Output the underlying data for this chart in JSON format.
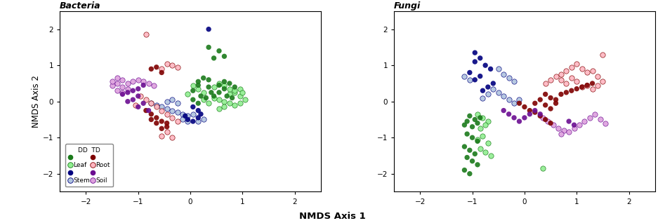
{
  "title_bacteria": "Bacteria",
  "title_fungi": "Fungi",
  "xlabel": "NMDS Axis 1",
  "ylabel": "NMDS Axis 2",
  "xlim": [
    -2.5,
    2.5
  ],
  "ylim": [
    -2.5,
    2.5
  ],
  "xticks": [
    -2,
    -1,
    0,
    1,
    2
  ],
  "yticks": [
    -2,
    -1,
    0,
    1,
    2
  ],
  "legend_labels": [
    "Leaf",
    "Stem",
    "Root",
    "Soil"
  ],
  "dd_colors": [
    "#1A7A1A",
    "#00007F",
    "#7F0000",
    "#6B0D91"
  ],
  "td_colors": [
    "#90EE90",
    "#B0C4DE",
    "#FFB6C1",
    "#DDA0DD"
  ],
  "marker_size": 28,
  "marker_alpha": 0.9,
  "background_color": "#ffffff",
  "bacteria": {
    "leaf_dd": [
      [
        0.35,
        1.5
      ],
      [
        0.55,
        1.4
      ],
      [
        0.65,
        1.25
      ],
      [
        0.45,
        1.2
      ],
      [
        0.15,
        0.55
      ],
      [
        0.25,
        0.65
      ],
      [
        0.35,
        0.6
      ],
      [
        0.15,
        0.45
      ],
      [
        0.05,
        0.3
      ],
      [
        0.35,
        0.4
      ],
      [
        0.4,
        0.25
      ],
      [
        0.2,
        0.15
      ],
      [
        0.05,
        0.05
      ],
      [
        0.15,
        -0.05
      ],
      [
        0.3,
        0.1
      ],
      [
        0.45,
        0.15
      ],
      [
        0.55,
        0.25
      ],
      [
        0.65,
        0.35
      ],
      [
        0.7,
        0.15
      ],
      [
        0.8,
        0.1
      ],
      [
        0.55,
        0.45
      ],
      [
        0.65,
        0.55
      ],
      [
        0.75,
        0.5
      ],
      [
        0.85,
        0.4
      ]
    ],
    "leaf_td": [
      [
        0.05,
        0.45
      ],
      [
        0.15,
        0.35
      ],
      [
        0.25,
        0.25
      ],
      [
        -0.05,
        0.2
      ],
      [
        0.25,
        0.05
      ],
      [
        0.35,
        -0.05
      ],
      [
        0.45,
        0.1
      ],
      [
        0.55,
        0.05
      ],
      [
        0.65,
        0.0
      ],
      [
        0.75,
        0.2
      ],
      [
        0.85,
        0.25
      ],
      [
        0.95,
        0.15
      ],
      [
        0.45,
        0.4
      ],
      [
        0.55,
        0.5
      ],
      [
        0.65,
        0.45
      ],
      [
        0.75,
        0.35
      ],
      [
        0.85,
        0.3
      ],
      [
        0.95,
        0.35
      ],
      [
        1.0,
        0.25
      ],
      [
        1.05,
        0.05
      ],
      [
        0.95,
        -0.05
      ],
      [
        0.85,
        -0.1
      ],
      [
        0.75,
        -0.05
      ],
      [
        0.65,
        -0.15
      ],
      [
        0.55,
        -0.2
      ]
    ],
    "stem_dd": [
      [
        0.35,
        2.0
      ],
      [
        0.05,
        -0.15
      ],
      [
        0.15,
        -0.25
      ],
      [
        0.2,
        -0.35
      ],
      [
        0.15,
        -0.45
      ],
      [
        0.05,
        -0.55
      ],
      [
        -0.05,
        -0.5
      ],
      [
        -0.1,
        -0.4
      ]
    ],
    "stem_td": [
      [
        -0.45,
        -0.2
      ],
      [
        -0.35,
        -0.25
      ],
      [
        -0.25,
        -0.3
      ],
      [
        -0.15,
        -0.35
      ],
      [
        -0.05,
        -0.4
      ],
      [
        0.05,
        -0.35
      ],
      [
        -0.55,
        -0.15
      ],
      [
        -0.65,
        -0.1
      ],
      [
        -0.75,
        -0.05
      ],
      [
        -0.45,
        0.0
      ],
      [
        -0.35,
        0.05
      ],
      [
        -0.25,
        -0.05
      ],
      [
        -0.15,
        -0.5
      ],
      [
        -0.05,
        -0.55
      ],
      [
        0.15,
        -0.55
      ],
      [
        0.25,
        -0.5
      ]
    ],
    "root_dd": [
      [
        -0.65,
        0.95
      ],
      [
        -0.75,
        0.9
      ],
      [
        -0.55,
        0.8
      ],
      [
        -0.85,
        -0.25
      ],
      [
        -0.75,
        -0.35
      ],
      [
        -0.65,
        -0.45
      ],
      [
        -0.55,
        -0.55
      ],
      [
        -0.45,
        -0.6
      ],
      [
        -0.45,
        -0.7
      ],
      [
        -0.65,
        -0.6
      ],
      [
        -0.75,
        -0.5
      ],
      [
        -0.55,
        -0.75
      ]
    ],
    "root_td": [
      [
        -0.45,
        1.05
      ],
      [
        -0.35,
        1.0
      ],
      [
        -0.25,
        0.95
      ],
      [
        -0.55,
        0.9
      ],
      [
        -0.75,
        -0.05
      ],
      [
        -0.65,
        -0.15
      ],
      [
        -0.85,
        0.05
      ],
      [
        -0.95,
        0.15
      ],
      [
        -1.05,
        -0.1
      ],
      [
        -0.55,
        -0.25
      ],
      [
        -0.45,
        -0.35
      ],
      [
        -0.35,
        -0.45
      ],
      [
        -0.25,
        -0.55
      ],
      [
        -0.45,
        -0.85
      ],
      [
        -0.55,
        -0.95
      ],
      [
        -0.35,
        -1.0
      ],
      [
        -0.85,
        1.85
      ]
    ],
    "soil_dd": [
      [
        -0.9,
        0.45
      ],
      [
        -1.0,
        0.35
      ],
      [
        -1.1,
        0.3
      ],
      [
        -1.2,
        0.25
      ],
      [
        -1.3,
        0.2
      ],
      [
        -1.0,
        0.15
      ],
      [
        -1.1,
        0.05
      ],
      [
        -1.2,
        0.0
      ],
      [
        -0.9,
        -0.05
      ],
      [
        -1.0,
        -0.15
      ],
      [
        -0.8,
        -0.25
      ]
    ],
    "soil_td": [
      [
        -1.4,
        0.5
      ],
      [
        -1.3,
        0.4
      ],
      [
        -1.2,
        0.5
      ],
      [
        -1.5,
        0.45
      ],
      [
        -1.4,
        0.3
      ],
      [
        -1.3,
        0.25
      ],
      [
        -1.2,
        0.35
      ],
      [
        -1.1,
        0.55
      ],
      [
        -1.0,
        0.6
      ],
      [
        -0.9,
        0.55
      ],
      [
        -0.8,
        0.5
      ],
      [
        -0.7,
        0.45
      ],
      [
        -1.4,
        0.65
      ],
      [
        -1.5,
        0.55
      ],
      [
        -1.3,
        0.6
      ]
    ]
  },
  "fungi": {
    "leaf_dd": [
      [
        -1.05,
        -0.4
      ],
      [
        -0.95,
        -0.5
      ],
      [
        -1.1,
        -0.55
      ],
      [
        -0.85,
        -0.45
      ],
      [
        -1.15,
        -0.65
      ],
      [
        -1.0,
        -0.7
      ],
      [
        -0.9,
        -0.6
      ],
      [
        -1.1,
        -0.9
      ],
      [
        -1.0,
        -1.0
      ],
      [
        -0.9,
        -1.1
      ],
      [
        -1.15,
        -1.25
      ],
      [
        -1.05,
        -1.35
      ],
      [
        -0.95,
        -1.45
      ],
      [
        -1.1,
        -1.55
      ],
      [
        -1.0,
        -1.65
      ],
      [
        -0.9,
        -1.75
      ],
      [
        -1.15,
        -1.9
      ],
      [
        -1.05,
        -2.0
      ]
    ],
    "leaf_td": [
      [
        -0.9,
        -0.35
      ],
      [
        -0.8,
        -0.45
      ],
      [
        -0.7,
        -0.55
      ],
      [
        -0.85,
        -0.75
      ],
      [
        -0.75,
        -0.65
      ],
      [
        -0.8,
        -0.95
      ],
      [
        -0.9,
        -1.05
      ],
      [
        -0.7,
        -1.15
      ],
      [
        -0.85,
        -1.3
      ],
      [
        -0.75,
        -1.4
      ],
      [
        -0.65,
        -1.5
      ],
      [
        0.35,
        -1.85
      ]
    ],
    "stem_dd": [
      [
        -0.95,
        1.35
      ],
      [
        -0.85,
        1.2
      ],
      [
        -0.95,
        1.1
      ],
      [
        -0.75,
        1.0
      ],
      [
        -0.65,
        0.9
      ],
      [
        -1.05,
        0.8
      ],
      [
        -0.85,
        0.7
      ],
      [
        -0.95,
        0.6
      ],
      [
        -0.6,
        0.5
      ],
      [
        -0.7,
        0.4
      ],
      [
        -0.8,
        0.3
      ]
    ],
    "stem_td": [
      [
        -0.5,
        0.9
      ],
      [
        -0.4,
        0.75
      ],
      [
        -0.3,
        0.65
      ],
      [
        -0.2,
        0.55
      ],
      [
        -0.6,
        0.35
      ],
      [
        -0.5,
        0.25
      ],
      [
        -0.4,
        0.15
      ],
      [
        -0.3,
        0.05
      ],
      [
        -0.2,
        -0.05
      ],
      [
        -0.1,
        0.05
      ],
      [
        -0.7,
        0.2
      ],
      [
        -0.8,
        0.1
      ],
      [
        -1.05,
        0.6
      ],
      [
        -1.15,
        0.7
      ]
    ],
    "root_dd": [
      [
        -0.1,
        -0.05
      ],
      [
        0.0,
        -0.15
      ],
      [
        0.1,
        -0.25
      ],
      [
        0.2,
        -0.05
      ],
      [
        0.3,
        0.05
      ],
      [
        0.4,
        -0.1
      ],
      [
        0.5,
        -0.2
      ],
      [
        0.6,
        -0.05
      ],
      [
        0.7,
        0.2
      ],
      [
        0.8,
        0.25
      ],
      [
        0.9,
        0.3
      ],
      [
        1.0,
        0.35
      ],
      [
        1.1,
        0.4
      ],
      [
        0.4,
        0.2
      ],
      [
        0.5,
        0.1
      ],
      [
        0.6,
        0.05
      ],
      [
        0.2,
        -0.3
      ],
      [
        0.3,
        -0.4
      ],
      [
        0.4,
        -0.5
      ],
      [
        0.5,
        -0.6
      ],
      [
        1.2,
        0.45
      ],
      [
        1.3,
        0.5
      ]
    ],
    "root_td": [
      [
        0.7,
        0.75
      ],
      [
        0.8,
        0.85
      ],
      [
        0.9,
        0.95
      ],
      [
        1.0,
        1.05
      ],
      [
        1.1,
        0.9
      ],
      [
        1.2,
        0.8
      ],
      [
        1.3,
        0.85
      ],
      [
        1.4,
        0.7
      ],
      [
        0.6,
        0.7
      ],
      [
        0.5,
        0.6
      ],
      [
        0.9,
        0.65
      ],
      [
        0.4,
        0.5
      ],
      [
        0.7,
        0.6
      ],
      [
        0.8,
        0.5
      ],
      [
        1.0,
        0.55
      ],
      [
        1.1,
        0.4
      ],
      [
        1.2,
        0.45
      ],
      [
        1.3,
        0.35
      ],
      [
        1.4,
        0.45
      ],
      [
        1.5,
        0.55
      ],
      [
        1.5,
        1.3
      ]
    ],
    "soil_dd": [
      [
        -0.3,
        -0.35
      ],
      [
        -0.2,
        -0.45
      ],
      [
        -0.1,
        -0.55
      ],
      [
        0.0,
        -0.45
      ],
      [
        0.1,
        -0.35
      ],
      [
        0.2,
        -0.25
      ],
      [
        0.3,
        -0.35
      ],
      [
        -0.4,
        -0.25
      ],
      [
        0.85,
        -0.55
      ],
      [
        0.95,
        -0.65
      ]
    ],
    "soil_td": [
      [
        0.35,
        -0.45
      ],
      [
        0.45,
        -0.55
      ],
      [
        0.55,
        -0.65
      ],
      [
        0.65,
        -0.75
      ],
      [
        0.75,
        -0.8
      ],
      [
        0.85,
        -0.85
      ],
      [
        0.95,
        -0.75
      ],
      [
        1.05,
        -0.65
      ],
      [
        1.15,
        -0.55
      ],
      [
        1.25,
        -0.45
      ],
      [
        1.35,
        -0.35
      ],
      [
        1.45,
        -0.5
      ],
      [
        0.7,
        -0.9
      ],
      [
        1.55,
        -0.6
      ]
    ]
  }
}
